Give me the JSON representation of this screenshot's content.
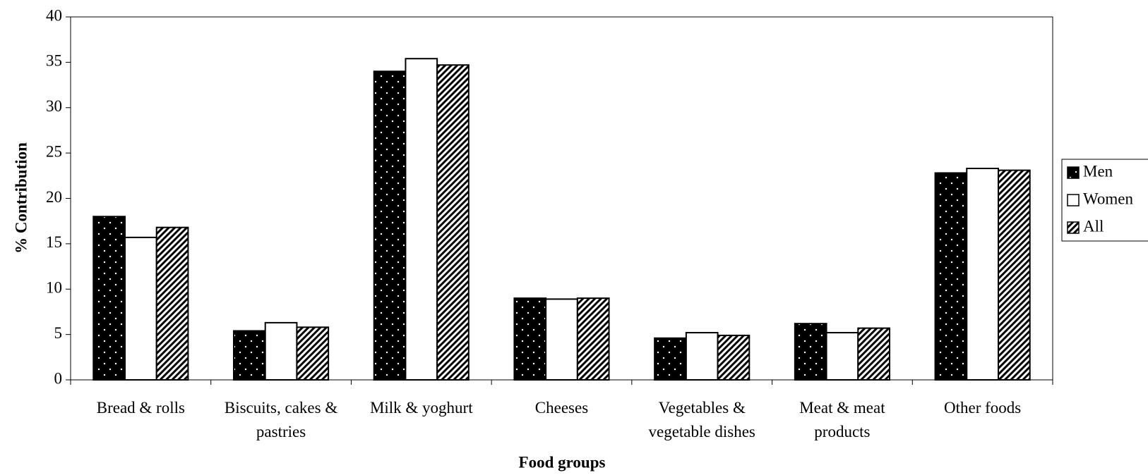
{
  "chart_data": {
    "type": "bar",
    "x_label": "Food groups",
    "y_label": "% Contribution",
    "categories": [
      "Bread & rolls",
      "Biscuits, cakes & pastries",
      "Milk & yoghurt",
      "Cheeses",
      "Vegetables & vegetable dishes",
      "Meat & meat products",
      "Other foods"
    ],
    "series": [
      {
        "name": "Men",
        "color": "#000000",
        "pattern": "dots",
        "values": [
          18.0,
          5.4,
          34.0,
          9.0,
          4.6,
          6.2,
          22.8
        ]
      },
      {
        "name": "Women",
        "color": "#ffffff",
        "pattern": "none",
        "values": [
          15.7,
          6.3,
          35.4,
          8.9,
          5.2,
          5.2,
          23.3
        ]
      },
      {
        "name": "All",
        "color": "#ffffff",
        "pattern": "hatch",
        "values": [
          16.8,
          5.8,
          34.7,
          9.0,
          4.9,
          5.7,
          23.1
        ]
      }
    ],
    "ylim": [
      0,
      40
    ],
    "yticks": [
      0,
      5,
      10,
      15,
      20,
      25,
      30,
      35,
      40
    ],
    "grid": false,
    "legend": "right"
  }
}
